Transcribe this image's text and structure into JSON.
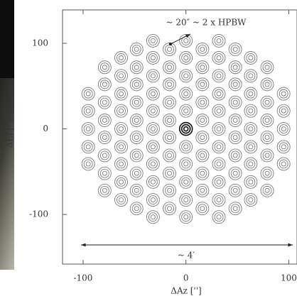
{
  "chart_data": {
    "type": "scatter",
    "annotations": [
      "~ 20″ ~ 2 x HPBW",
      "~ 4′"
    ],
    "xlabel": "ΔAz ['']",
    "ylabel": "ΔEl ['']",
    "xlim": [
      -120,
      108
    ],
    "ylim": [
      -158,
      139
    ],
    "xticks": [
      -100,
      0,
      100
    ],
    "yticks": [
      -100,
      0,
      100
    ],
    "series": [
      {
        "color": "#7a7a7a",
        "x": [
          -95,
          -95,
          -95,
          -95,
          -95,
          -79,
          -79,
          -79,
          -79,
          -79,
          -79,
          -79,
          -79,
          -63,
          -63,
          -63,
          -63,
          -63,
          -63,
          -63,
          -63,
          -63,
          -48,
          -48,
          -48,
          -48,
          -48,
          -48,
          -48,
          -48,
          -48,
          -48,
          -32,
          -32,
          -32,
          -32,
          -32,
          -32,
          -32,
          -32,
          -32,
          -32,
          -32,
          -16,
          -16,
          -16,
          -16,
          -16,
          -16,
          -16,
          -16,
          -16,
          -16,
          0,
          0,
          0,
          0,
          0,
          0,
          0,
          0,
          0,
          0,
          16,
          16,
          16,
          16,
          16,
          16,
          16,
          16,
          16,
          16,
          32,
          32,
          32,
          32,
          32,
          32,
          32,
          32,
          32,
          32,
          32,
          48,
          48,
          48,
          48,
          48,
          48,
          48,
          48,
          48,
          48,
          63,
          63,
          63,
          63,
          63,
          63,
          63,
          63,
          63,
          79,
          79,
          79,
          79,
          79,
          79,
          79,
          79,
          95,
          95,
          95,
          95,
          95
        ],
        "values": [
          41,
          21,
          0,
          -21,
          -41,
          72,
          52,
          31,
          10,
          -10,
          -31,
          -52,
          -72,
          83,
          62,
          41,
          21,
          0,
          -21,
          -41,
          -62,
          -83,
          93,
          72,
          52,
          31,
          10,
          -10,
          -31,
          -52,
          -72,
          -93,
          103,
          83,
          62,
          41,
          21,
          0,
          -21,
          -41,
          -62,
          -83,
          -103,
          93,
          72,
          52,
          31,
          10,
          -10,
          -31,
          -52,
          -72,
          -93,
          103,
          83,
          62,
          41,
          21,
          -21,
          -41,
          -62,
          -83,
          -103,
          93,
          72,
          52,
          31,
          10,
          -10,
          -31,
          -52,
          -72,
          -93,
          103,
          83,
          62,
          41,
          21,
          0,
          -21,
          -41,
          -62,
          -83,
          -103,
          93,
          72,
          52,
          31,
          10,
          -10,
          -31,
          -52,
          -72,
          -93,
          83,
          62,
          41,
          21,
          0,
          -21,
          -41,
          -62,
          -83,
          72,
          52,
          31,
          10,
          -10,
          -31,
          -52,
          -72,
          41,
          21,
          0,
          -21,
          -41
        ]
      },
      {
        "color": "#111111",
        "x": [
          0
        ],
        "values": [
          0
        ]
      }
    ]
  }
}
